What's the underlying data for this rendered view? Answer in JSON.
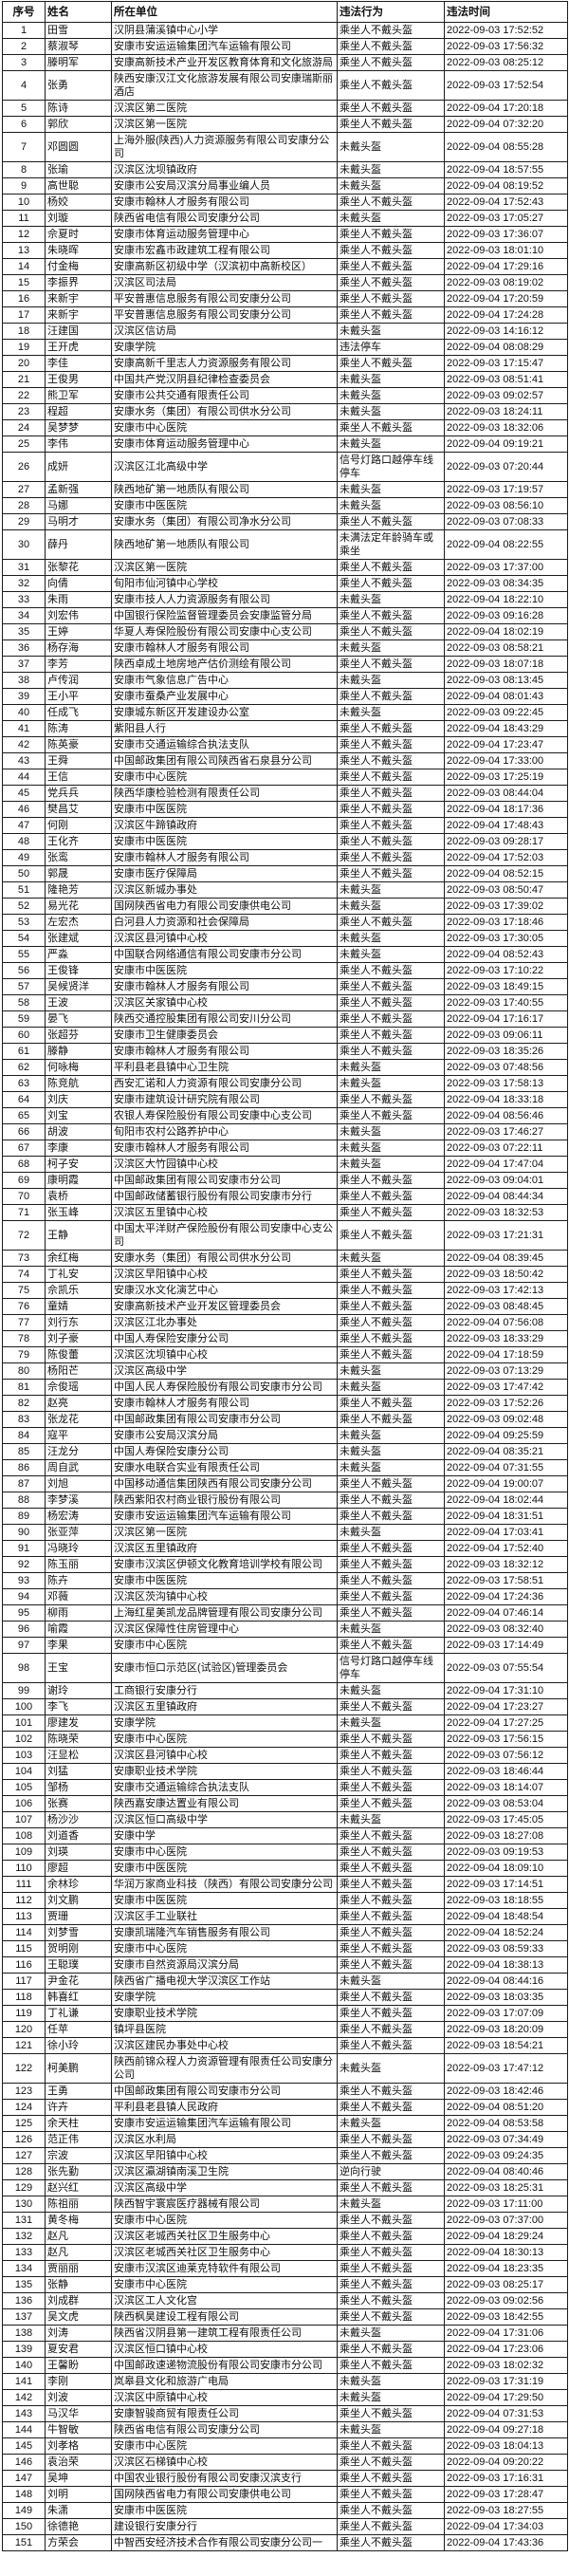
{
  "colors": {
    "border": "#1c1c1c",
    "background": "#ffffff",
    "text": "#111111"
  },
  "table": {
    "columns": [
      "序号",
      "姓名",
      "所在单位",
      "违法行为",
      "违法时间"
    ],
    "rows": [
      [
        "1",
        "田雪",
        "汉阴县蒲溪镇中心小学",
        "乘坐人不戴头盔",
        "2022-09-03 17:52:52"
      ],
      [
        "2",
        "蔡淑琴",
        "安康市安运运输集团汽车运输有限公司",
        "乘坐人不戴头盔",
        "2022-09-03 17:56:32"
      ],
      [
        "3",
        "滕明军",
        "安康高新技术产业开发区教育体育和文化旅游局",
        "乘坐人不戴头盔",
        "2022-09-03 08:25:12"
      ],
      [
        "4",
        "张勇",
        "陕西安康汉江文化旅游发展有限公司安康瑞斯丽酒店",
        "乘坐人不戴头盔",
        "2022-09-03 17:52:54"
      ],
      [
        "5",
        "陈诗",
        "汉滨区第二医院",
        "乘坐人不戴头盔",
        "2022-09-04 17:20:18"
      ],
      [
        "6",
        "郭欣",
        "汉滨区第一医院",
        "乘坐人不戴头盔",
        "2022-09-04 07:32:20"
      ],
      [
        "7",
        "邓圆圆",
        "上海外服(陕西)人力资源服务有限公司安康分公司",
        "未戴头盔",
        "2022-09-04 08:55:28"
      ],
      [
        "8",
        "张瑜",
        "汉滨区沈坝镇政府",
        "未戴头盔",
        "2022-09-04 18:57:55"
      ],
      [
        "9",
        "高世聪",
        "安康市公安局汉滨分局事业编人员",
        "未戴头盔",
        "2022-09-04 08:19:52"
      ],
      [
        "10",
        "杨姣",
        "安康市翰林人才服务有限公司",
        "乘坐人不戴头盔",
        "2022-09-04 17:52:43"
      ],
      [
        "11",
        "刘璇",
        "陕西省电信有限公司安康分公司",
        "未戴头盔",
        "2022-09-03 17:05:27"
      ],
      [
        "12",
        "佘夏时",
        "安康市体育运动服务管理中心",
        "乘坐人不戴头盔",
        "2022-09-03 17:36:07"
      ],
      [
        "13",
        "朱晓晖",
        "安康市宏鑫市政建筑工程有限公司",
        "乘坐人不戴头盔",
        "2022-09-03 18:01:10"
      ],
      [
        "14",
        "付金梅",
        "安康高新区初级中学（汉滨初中高新校区）",
        "乘坐人不戴头盔",
        "2022-09-04 17:29:16"
      ],
      [
        "15",
        "李振界",
        "汉滨区司法局",
        "乘坐人不戴头盔",
        "2022-09-03 08:19:02"
      ],
      [
        "16",
        "来新宇",
        "平安普惠信息服务有限公司安康分公司",
        "乘坐人不戴头盔",
        "2022-09-04 17:20:59"
      ],
      [
        "17",
        "来新宇",
        "平安普惠信息服务有限公司安康分公司",
        "乘坐人不戴头盔",
        "2022-09-04 17:24:28"
      ],
      [
        "18",
        "汪建国",
        "汉滨区信访局",
        "未戴头盔",
        "2022-09-03 14:16:12"
      ],
      [
        "19",
        "王开虎",
        "安康学院",
        "违法停车",
        "2022-09-04 08:08:29"
      ],
      [
        "20",
        "李佳",
        "安康高新千里志人力资源服务有限公司",
        "乘坐人不戴头盔",
        "2022-09-03 17:15:47"
      ],
      [
        "21",
        "王俊男",
        "中国共产党汉阴县纪律检查委员会",
        "未戴头盔",
        "2022-09-03 08:51:41"
      ],
      [
        "22",
        "熊卫军",
        "安康市公共交通有限责任公司",
        "未戴头盔",
        "2022-09-03 09:02:57"
      ],
      [
        "23",
        "程超",
        "安康水务（集团）有限公司供水分公司",
        "未戴头盔",
        "2022-09-03 18:24:11"
      ],
      [
        "24",
        "吴梦梦",
        "安康市中心医院",
        "乘坐人不戴头盔",
        "2022-09-03 18:32:06"
      ],
      [
        "25",
        "李伟",
        "安康市体育运动服务管理中心",
        "未戴头盔",
        "2022-09-04 09:19:21"
      ],
      [
        "26",
        "成妍",
        "汉滨区江北高级中学",
        "信号灯路口越停车线停车",
        "2022-09-03 07:20:44"
      ],
      [
        "27",
        "孟新强",
        "陕西地矿第一地质队有限公司",
        "未戴头盔",
        "2022-09-03 17:19:57"
      ],
      [
        "28",
        "马娜",
        "安康市中医医院",
        "未戴头盔",
        "2022-09-03 08:56:10"
      ],
      [
        "29",
        "马明才",
        "安康水务（集团）有限公司净水分公司",
        "乘坐人不戴头盔",
        "2022-09-03 07:08:33"
      ],
      [
        "30",
        "薛丹",
        "陕西地矿第一地质队有限公司",
        "未满法定年龄骑车或乘坐",
        "2022-09-04 08:22:55"
      ],
      [
        "31",
        "张黎花",
        "汉滨区第一医院",
        "乘坐人不戴头盔",
        "2022-09-03 17:37:00"
      ],
      [
        "32",
        "向倩",
        "旬阳市仙河镇中心学校",
        "乘坐人不戴头盔",
        "2022-09-03 08:34:35"
      ],
      [
        "33",
        "朱雨",
        "安康市技人人力资源服务有限公司",
        "未戴头盔",
        "2022-09-04 18:22:10"
      ],
      [
        "34",
        "刘宏伟",
        "中国银行保险监督管理委员会安康监管分局",
        "乘坐人不戴头盔",
        "2022-09-03 09:16:28"
      ],
      [
        "35",
        "王婷",
        "华夏人寿保险股份有限公司安康中心支公司",
        "乘坐人不戴头盔",
        "2022-09-04 18:02:19"
      ],
      [
        "36",
        "杨存海",
        "安康市翰林人才服务有限公司",
        "未戴头盔",
        "2022-09-03 08:58:21"
      ],
      [
        "37",
        "李芳",
        "陕西卓成土地房地产估价测绘有限公司",
        "乘坐人不戴头盔",
        "2022-09-03 18:07:18"
      ],
      [
        "38",
        "卢传润",
        "安康市气象信息广告中心",
        "未戴头盔",
        "2022-09-03 08:13:45"
      ],
      [
        "39",
        "王小平",
        "安康市蚕桑产业发展中心",
        "乘坐人不戴头盔",
        "2022-09-04 08:01:43"
      ],
      [
        "40",
        "任成飞",
        "安康城东新区开发建设办公室",
        "未戴头盔",
        "2022-09-03 09:22:45"
      ],
      [
        "41",
        "陈涛",
        "紫阳县人行",
        "乘坐人不戴头盔",
        "2022-09-04 18:43:29"
      ],
      [
        "42",
        "陈英豪",
        "安康市交通运输综合执法支队",
        "乘坐人不戴头盔",
        "2022-09-04 17:23:47"
      ],
      [
        "43",
        "王舜",
        "中国邮政集团有限公司陕西省石泉县分公司",
        "乘坐人不戴头盔",
        "2022-09-04 17:33:00"
      ],
      [
        "44",
        "王信",
        "安康市中心医院",
        "乘坐人不戴头盔",
        "2022-09-03 17:25:19"
      ],
      [
        "45",
        "党兵兵",
        "陕西华康检验检测有限责任公司",
        "乘坐人不戴头盔",
        "2022-09-03 08:44:04"
      ],
      [
        "46",
        "樊昌艾",
        "安康市中医医院",
        "乘坐人不戴头盔",
        "2022-09-04 18:17:36"
      ],
      [
        "47",
        "何刚",
        "汉滨区牛蹄镇政府",
        "乘坐人不戴头盔",
        "2022-09-04 17:48:43"
      ],
      [
        "48",
        "王化齐",
        "安康市中医医院",
        "乘坐人不戴头盔",
        "2022-09-03 09:28:17"
      ],
      [
        "49",
        "张鸾",
        "安康市翰林人才服务有限公司",
        "乘坐人不戴头盔",
        "2022-09-04 17:52:03"
      ],
      [
        "50",
        "郭晟",
        "安康市医疗保障局",
        "乘坐人不戴头盔",
        "2022-09-04 08:52:15"
      ],
      [
        "51",
        "隆艳芳",
        "汉滨区新城办事处",
        "未戴头盔",
        "2022-09-03 08:50:47"
      ],
      [
        "52",
        "易光花",
        "国网陕西省电力有限公司安康供电公司",
        "未戴头盔",
        "2022-09-03 17:39:02"
      ],
      [
        "53",
        "左宏杰",
        "白河县人力资源和社会保障局",
        "乘坐人不戴头盔",
        "2022-09-03 17:18:46"
      ],
      [
        "54",
        "张建斌",
        "汉滨区县河镇中心校",
        "未戴头盔",
        "2022-09-03 17:30:05"
      ],
      [
        "55",
        "严淼",
        "中国联合网络通信有限公司安康市分公司",
        "未戴头盔",
        "2022-09-04 08:52:43"
      ],
      [
        "56",
        "王俊锋",
        "安康市中医医院",
        "乘坐人不戴头盔",
        "2022-09-03 17:10:22"
      ],
      [
        "57",
        "吴候贤洋",
        "安康市翰林人才服务有限公司",
        "乘坐人不戴头盔",
        "2022-09-03 18:49:15"
      ],
      [
        "58",
        "王波",
        "汉滨区关家镇中心校",
        "乘坐人不戴头盔",
        "2022-09-03 17:40:55"
      ],
      [
        "59",
        "晏飞",
        "陕西交通控股集团有限公司安川分公司",
        "乘坐人不戴头盔",
        "2022-09-04 17:16:17"
      ],
      [
        "60",
        "张超芬",
        "安康市卫生健康委员会",
        "乘坐人不戴头盔",
        "2022-09-03 09:06:11"
      ],
      [
        "61",
        "滕静",
        "安康市翰林人才服务有限公司",
        "乘坐人不戴头盔",
        "2022-09-03 18:35:26"
      ],
      [
        "62",
        "何咏梅",
        "平利县老县镇中心卫生院",
        "未戴头盔",
        "2022-09-03 07:48:56"
      ],
      [
        "63",
        "陈竞航",
        "西安汇诺和人力资源有限公司安康分公司",
        "未戴头盔",
        "2022-09-03 17:58:13"
      ],
      [
        "64",
        "刘庆",
        "安康市建筑设计研究院有限公司",
        "乘坐人不戴头盔",
        "2022-09-04 18:33:18"
      ],
      [
        "65",
        "刘宝",
        "农银人寿保险股份有限公司安康中心支公司",
        "乘坐人不戴头盔",
        "2022-09-04 08:56:46"
      ],
      [
        "66",
        "胡波",
        "旬阳市农村公路养护中心",
        "未戴头盔",
        "2022-09-03 17:46:27"
      ],
      [
        "67",
        "李康",
        "安康市翰林人才服务有限公司",
        "未戴头盔",
        "2022-09-03 07:22:11"
      ],
      [
        "68",
        "柯子安",
        "汉滨区大竹园镇中心校",
        "未戴头盔",
        "2022-09-04 17:47:04"
      ],
      [
        "69",
        "康明霞",
        "中国邮政集团有限公司安康市分公司",
        "乘坐人不戴头盔",
        "2022-09-03 09:04:01"
      ],
      [
        "70",
        "袁桥",
        "中国邮政储蓄银行股份有限公司安康市分行",
        "乘坐人不戴头盔",
        "2022-09-04 08:44:34"
      ],
      [
        "71",
        "张玉峰",
        "汉滨区五里镇中心校",
        "乘坐人不戴头盔",
        "2022-09-03 18:32:53"
      ],
      [
        "72",
        "王静",
        "中国太平洋财产保险股份有限公司安康中心支公司",
        "乘坐人不戴头盔",
        "2022-09-03 17:21:31"
      ],
      [
        "73",
        "余红梅",
        "安康水务（集团）有限公司供水分公司",
        "未戴头盔",
        "2022-09-04 08:39:45"
      ],
      [
        "74",
        "丁礼安",
        "汉滨区早阳镇中心校",
        "乘坐人不戴头盔",
        "2022-09-03 18:50:42"
      ],
      [
        "75",
        "佘凯乐",
        "安康汉水文化演艺中心",
        "乘坐人不戴头盔",
        "2022-09-03 17:42:13"
      ],
      [
        "76",
        "童婧",
        "安康高新技术产业开发区管理委员会",
        "乘坐人不戴头盔",
        "2022-09-03 08:48:45"
      ],
      [
        "77",
        "刘行东",
        "汉滨区江北办事处",
        "乘坐人不戴头盔",
        "2022-09-04 07:56:08"
      ],
      [
        "78",
        "刘子豪",
        "中国人寿保险安康分公司",
        "乘坐人不戴头盔",
        "2022-09-03 18:33:29"
      ],
      [
        "79",
        "陈俊蕾",
        "汉滨区沈坝镇中心校",
        "乘坐人不戴头盔",
        "2022-09-04 17:18:59"
      ],
      [
        "80",
        "杨阳芒",
        "汉滨区高级中学",
        "未戴头盔",
        "2022-09-03 07:13:29"
      ],
      [
        "81",
        "佘俊瑶",
        "中国人民人寿保险股份有限公司安康市分公司",
        "未戴头盔",
        "2022-09-03 17:47:42"
      ],
      [
        "82",
        "赵亮",
        "安康市翰林人才服务有限公司",
        "乘坐人不戴头盔",
        "2022-09-03 17:52:26"
      ],
      [
        "83",
        "张龙花",
        "中国邮政集团有限公司安康市分公司",
        "乘坐人不戴头盔",
        "2022-09-03 09:02:48"
      ],
      [
        "84",
        "寇平",
        "安康市公安局汉滨分局",
        "未戴头盔",
        "2022-09-04 09:25:59"
      ],
      [
        "85",
        "汪龙分",
        "中国人寿保险安康分公司",
        "未戴头盔",
        "2022-09-04 08:35:21"
      ],
      [
        "86",
        "周自武",
        "安康水电联合实业有限责任公司",
        "未戴头盔",
        "2022-09-04 07:31:55"
      ],
      [
        "87",
        "刘旭",
        "中国移动通信集团陕西有限公司安康分公司",
        "乘坐人不戴头盔",
        "2022-09-04 19:00:07"
      ],
      [
        "88",
        "李梦溪",
        "陕西紫阳农村商业银行股份有限公司",
        "乘坐人不戴头盔",
        "2022-09-04 18:02:44"
      ],
      [
        "89",
        "杨宏涛",
        "安康市安运运输集团汽车运输有限公司",
        "乘坐人不戴头盔",
        "2022-09-04 18:31:51"
      ],
      [
        "90",
        "张亚萍",
        "汉滨区第一医院",
        "未戴头盔",
        "2022-09-04 17:03:41"
      ],
      [
        "91",
        "冯晓玲",
        "汉滨区五里镇政府",
        "乘坐人不戴头盔",
        "2022-09-04 17:52:40"
      ],
      [
        "92",
        "陈玉丽",
        "安康市汉滨区伊顿文化教育培训学校有限公司",
        "乘坐人不戴头盔",
        "2022-09-03 18:32:12"
      ],
      [
        "93",
        "陈卉",
        "安康市中医医院",
        "乘坐人不戴头盔",
        "2022-09-03 17:58:51"
      ],
      [
        "94",
        "邓薇",
        "汉滨区茨沟镇中心校",
        "乘坐人不戴头盔",
        "2022-09-04 17:24:36"
      ],
      [
        "95",
        "柳雨",
        "上海红星美凯龙品牌管理有限公司安康分公司",
        "乘坐人不戴头盔",
        "2022-09-04 07:46:14"
      ],
      [
        "96",
        "喻霞",
        "汉滨区保障性住房管理中心",
        "未戴头盔",
        "2022-09-03 08:32:40"
      ],
      [
        "97",
        "李果",
        "安康市中心医院",
        "乘坐人不戴头盔",
        "2022-09-03 17:14:49"
      ],
      [
        "98",
        "王宝",
        "安康市恒口示范区(试验区)管理委员会",
        "信号灯路口越停车线停车",
        "2022-09-03 07:55:54"
      ],
      [
        "99",
        "谢玲",
        "工商银行安康分行",
        "未戴头盔",
        "2022-09-04 17:31:10"
      ],
      [
        "100",
        "李飞",
        "汉滨区五里镇政府",
        "乘坐人不戴头盔",
        "2022-09-04 17:23:27"
      ],
      [
        "101",
        "廖建发",
        "安康学院",
        "未戴头盔",
        "2022-09-04 17:27:25"
      ],
      [
        "102",
        "陈晓荣",
        "安康市中心医院",
        "乘坐人不戴头盔",
        "2022-09-03 17:56:15"
      ],
      [
        "103",
        "汪显松",
        "汉滨区县河镇中心校",
        "乘坐人不戴头盔",
        "2022-09-03 07:56:12"
      ],
      [
        "104",
        "刘猛",
        "安康职业技术学院",
        "乘坐人不戴头盔",
        "2022-09-03 18:46:44"
      ],
      [
        "105",
        "邹杨",
        "安康市交通运输综合执法支队",
        "乘坐人不戴头盔",
        "2022-09-03 18:14:07"
      ],
      [
        "106",
        "张赛",
        "陕西嘉安康达置业有限公司",
        "乘坐人不戴头盔",
        "2022-09-03 08:53:04"
      ],
      [
        "107",
        "杨沙沙",
        "汉滨区恒口高级中学",
        "未戴头盔",
        "2022-09-03 17:45:05"
      ],
      [
        "108",
        "刘道香",
        "安康中学",
        "乘坐人不戴头盔",
        "2022-09-03 18:27:08"
      ],
      [
        "109",
        "刘瑛",
        "安康市中心医院",
        "乘坐人不戴头盔",
        "2022-09-03 09:19:53"
      ],
      [
        "110",
        "廖超",
        "安康市中医医院",
        "乘坐人不戴头盔",
        "2022-09-04 18:09:10"
      ],
      [
        "111",
        "余林珍",
        "华润万家商业科技（陕西）有限公司安康分公司",
        "乘坐人不戴头盔",
        "2022-09-03 17:14:51"
      ],
      [
        "112",
        "刘文鹏",
        "安康市中医医院",
        "乘坐人不戴头盔",
        "2022-09-03 18:18:55"
      ],
      [
        "113",
        "贾珊",
        "汉滨区手工业联社",
        "乘坐人不戴头盔",
        "2022-09-04 18:48:54"
      ],
      [
        "114",
        "刘梦雪",
        "安康凯瑞隆汽车销售服务有限公司",
        "乘坐人不戴头盔",
        "2022-09-04 18:52:24"
      ],
      [
        "115",
        "贺明刚",
        "安康市中心医院",
        "乘坐人不戴头盔",
        "2022-09-03 08:59:33"
      ],
      [
        "116",
        "王聪璞",
        "安康市自然资源局汉滨分局",
        "乘坐人不戴头盔",
        "2022-09-04 18:38:13"
      ],
      [
        "117",
        "尹金花",
        "陕西省广播电视大学汉滨区工作站",
        "未戴头盔",
        "2022-09-04 08:44:16"
      ],
      [
        "118",
        "韩喜红",
        "安康学院",
        "乘坐人不戴头盔",
        "2022-09-03 18:03:35"
      ],
      [
        "119",
        "丁礼谦",
        "安康职业技术学院",
        "乘坐人不戴头盔",
        "2022-09-03 17:07:09"
      ],
      [
        "120",
        "任苹",
        "镇坪县医院",
        "乘坐人不戴头盔",
        "2022-09-03 18:20:09"
      ],
      [
        "121",
        "徐小玲",
        "汉滨区建民办事处中心校",
        "乘坐人不戴头盔",
        "2022-09-03 18:54:21"
      ],
      [
        "122",
        "柯美鹏",
        "陕西前锦众程人力资源管理有限责任公司安康分公司",
        "未戴头盔",
        "2022-09-03 17:47:12"
      ],
      [
        "123",
        "王勇",
        "中国邮政集团有限公司安康市分公司",
        "乘坐人不戴头盔",
        "2022-09-03 18:42:46"
      ],
      [
        "124",
        "许卉",
        "平利县老县镇人民政府",
        "乘坐人不戴头盔",
        "2022-09-04 08:51:20"
      ],
      [
        "125",
        "余天柱",
        "安康市安运运输集团汽车运输有限公司",
        "未戴头盔",
        "2022-09-04 08:53:58"
      ],
      [
        "126",
        "范正伟",
        "汉滨区水利局",
        "乘坐人不戴头盔",
        "2022-09-03 07:34:49"
      ],
      [
        "127",
        "宗波",
        "汉滨区早阳镇中心校",
        "乘坐人不戴头盔",
        "2022-09-03 09:24:35"
      ],
      [
        "128",
        "张先勤",
        "汉滨区瀛湖镇南溪卫生院",
        "逆向行驶",
        "2022-09-04 08:40:46"
      ],
      [
        "129",
        "赵兴红",
        "汉滨区高级中学",
        "乘坐人不戴头盔",
        "2022-09-03 18:25:31"
      ],
      [
        "130",
        "陈祖丽",
        "陕西智宇寰宸医疗器械有限公司",
        "未戴头盔",
        "2022-09-03 17:11:00"
      ],
      [
        "131",
        "黄冬梅",
        "安康市中心医院",
        "乘坐人不戴头盔",
        "2022-09-03 07:37:00"
      ],
      [
        "132",
        "赵凡",
        "汉滨区老城西关社区卫生服务中心",
        "乘坐人不戴头盔",
        "2022-09-04 18:29:24"
      ],
      [
        "133",
        "赵凡",
        "汉滨区老城西关社区卫生服务中心",
        "乘坐人不戴头盔",
        "2022-09-04 18:30:13"
      ],
      [
        "134",
        "贾丽丽",
        "安康市汉滨区迪莱克特软件有限公司",
        "乘坐人不戴头盔",
        "2022-09-04 18:23:35"
      ],
      [
        "135",
        "张静",
        "安康市中心医院",
        "乘坐人不戴头盔",
        "2022-09-03 08:25:17"
      ],
      [
        "136",
        "刘成群",
        "汉滨区工人文化宫",
        "乘坐人不戴头盔",
        "2022-09-03 09:02:56"
      ],
      [
        "137",
        "吴文虎",
        "陕西枫昊建设工程有限公司",
        "乘坐人不戴头盔",
        "2022-09-03 18:42:55"
      ],
      [
        "138",
        "刘涛",
        "陕西省汉阴县第一建筑工程有限责任公司",
        "未戴头盔",
        "2022-09-04 17:31:06"
      ],
      [
        "139",
        "夏安君",
        "汉滨区恒口镇中心校",
        "乘坐人不戴头盔",
        "2022-09-04 17:23:06"
      ],
      [
        "140",
        "王馨盼",
        "中国邮政速递物流股份有限公司安康市分公司",
        "乘坐人不戴头盔",
        "2022-09-03 18:02:32"
      ],
      [
        "141",
        "李刚",
        "岚皋县文化和旅游广电局",
        "未戴头盔",
        "2022-09-03 17:31:19"
      ],
      [
        "142",
        "刘波",
        "汉滨区中原镇中心校",
        "未戴头盔",
        "2022-09-04 17:29:50"
      ],
      [
        "143",
        "马汉华",
        "安康智骏商贸有限责任公司",
        "乘坐人不戴头盔",
        "2022-09-04 07:31:53"
      ],
      [
        "144",
        "牛智敏",
        "陕西省电信有限公司安康分公司",
        "未戴头盔",
        "2022-09-04 09:27:18"
      ],
      [
        "145",
        "刘孝格",
        "安康市中心医院",
        "乘坐人不戴头盔",
        "2022-09-03 18:04:13"
      ],
      [
        "146",
        "袁治荣",
        "汉滨区石梯镇中心校",
        "乘坐人不戴头盔",
        "2022-09-04 09:20:22"
      ],
      [
        "147",
        "吴坤",
        "中国农业银行股份有限公司安康汉滨支行",
        "乘坐人不戴头盔",
        "2022-09-03 17:16:31"
      ],
      [
        "148",
        "刘明",
        "国网陕西省电力有限公司安康供电公司",
        "乘坐人不戴头盔",
        "2022-09-03 17:28:47"
      ],
      [
        "149",
        "朱潇",
        "安康市中医医院",
        "乘坐人不戴头盔",
        "2022-09-03 18:27:55"
      ],
      [
        "150",
        "徐德艳",
        "建设银行安康分行",
        "乘坐人不戴头盔",
        "2022-09-04 17:34:03"
      ],
      [
        "151",
        "方荣会",
        "中智西安经济技术合作有限公司安康分公司一",
        "乘坐人不戴头盔",
        "2022-09-04 17:43:36"
      ]
    ]
  }
}
